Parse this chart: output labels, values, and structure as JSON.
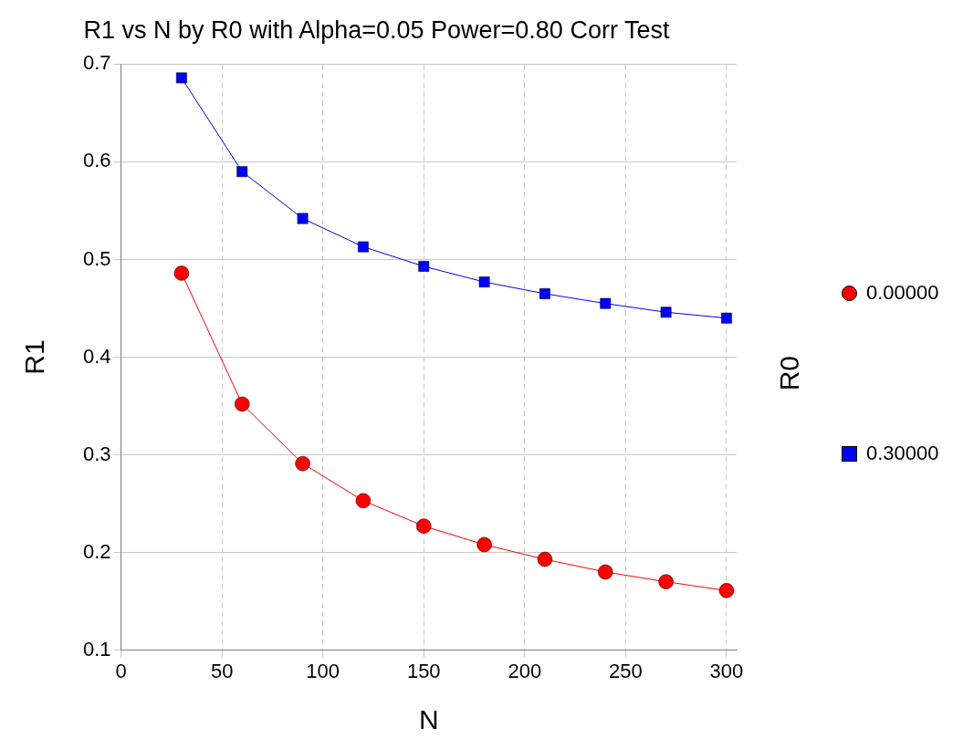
{
  "chart_data": {
    "type": "line",
    "title": "R1 vs N by R0 with Alpha=0.05 Power=0.80 Corr Test",
    "xlabel": "N",
    "ylabel": "R1",
    "legend_title": "R0",
    "x": [
      30,
      60,
      90,
      120,
      150,
      180,
      210,
      240,
      270,
      300
    ],
    "series": [
      {
        "name": "0.00000",
        "color": "#ff0000",
        "marker": "circle",
        "values": [
          0.486,
          0.352,
          0.291,
          0.253,
          0.227,
          0.208,
          0.193,
          0.18,
          0.17,
          0.161
        ]
      },
      {
        "name": "0.30000",
        "color": "#0000ff",
        "marker": "square",
        "values": [
          0.686,
          0.59,
          0.542,
          0.513,
          0.493,
          0.477,
          0.465,
          0.455,
          0.446,
          0.44
        ]
      }
    ],
    "xlim": [
      0,
      305
    ],
    "xticks": [
      0,
      50,
      100,
      150,
      200,
      250,
      300
    ],
    "ylim": [
      0.1,
      0.7
    ],
    "yticks": [
      0.1,
      0.2,
      0.3,
      0.4,
      0.5,
      0.6,
      0.7
    ],
    "grid": true,
    "legend": "right",
    "line_style": "solid"
  }
}
